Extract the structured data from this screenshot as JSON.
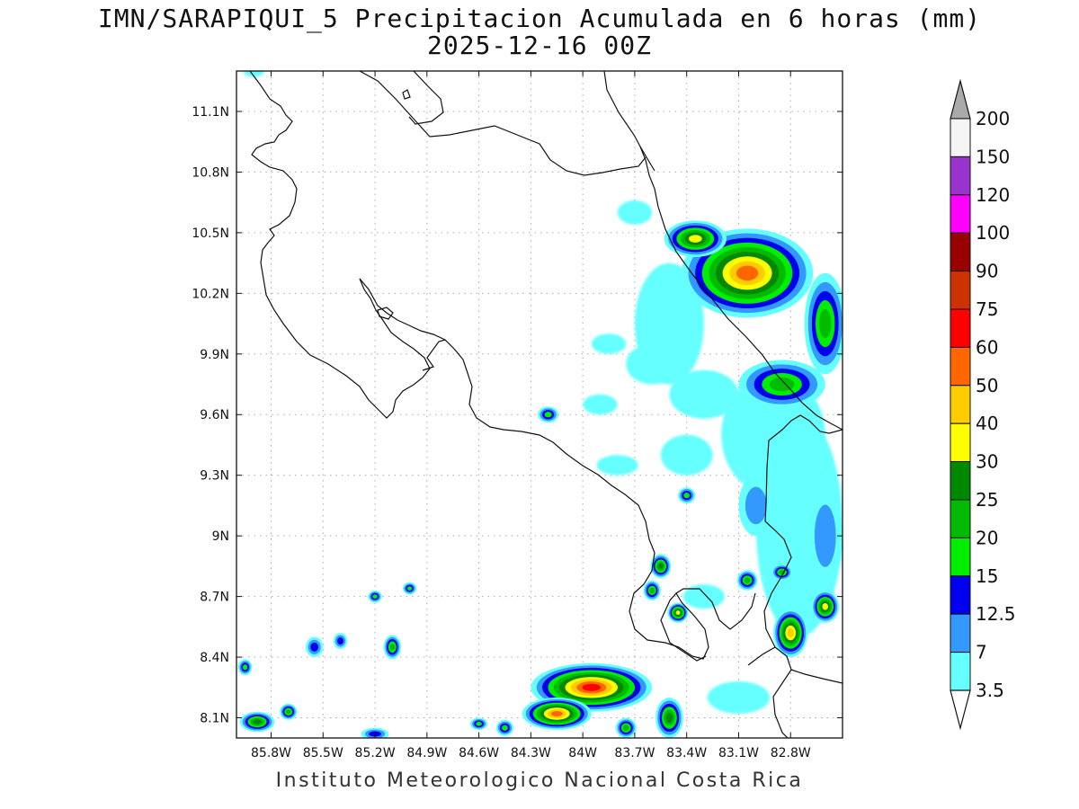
{
  "title": {
    "line1": "IMN/SARAPIQUI_5 Precipitacion Acumulada en 6 horas (mm)",
    "line2": "2025-12-16 00Z"
  },
  "footer": "Instituto Meteorologico Nacional Costa Rica",
  "map": {
    "lon_range": [
      -86.0,
      -82.5
    ],
    "lat_range": [
      8.0,
      11.3
    ],
    "lon_ticks": [
      {
        "value": -85.8,
        "label": "85.8W"
      },
      {
        "value": -85.5,
        "label": "85.5W"
      },
      {
        "value": -85.2,
        "label": "85.2W"
      },
      {
        "value": -84.9,
        "label": "84.9W"
      },
      {
        "value": -84.6,
        "label": "84.6W"
      },
      {
        "value": -84.3,
        "label": "84.3W"
      },
      {
        "value": -84.0,
        "label": "84W"
      },
      {
        "value": -83.7,
        "label": "83.7W"
      },
      {
        "value": -83.4,
        "label": "83.4W"
      },
      {
        "value": -83.1,
        "label": "83.1W"
      },
      {
        "value": -82.8,
        "label": "82.8W"
      }
    ],
    "lat_ticks": [
      {
        "value": 8.1,
        "label": "8.1N"
      },
      {
        "value": 8.4,
        "label": "8.4N"
      },
      {
        "value": 8.7,
        "label": "8.7N"
      },
      {
        "value": 9.0,
        "label": "9N"
      },
      {
        "value": 9.3,
        "label": "9.3N"
      },
      {
        "value": 9.6,
        "label": "9.6N"
      },
      {
        "value": 9.9,
        "label": "9.9N"
      },
      {
        "value": 10.2,
        "label": "10.2N"
      },
      {
        "value": 10.5,
        "label": "10.5N"
      },
      {
        "value": 10.8,
        "label": "10.8N"
      },
      {
        "value": 11.1,
        "label": "11.1N"
      }
    ],
    "grid": true
  },
  "colorbar": {
    "levels": [
      "3.5",
      "7",
      "12.5",
      "15",
      "20",
      "25",
      "30",
      "40",
      "50",
      "60",
      "75",
      "90",
      "100",
      "120",
      "150",
      "200"
    ],
    "colors": [
      "#ffffff",
      "#66ffff",
      "#3399ff",
      "#0000ee",
      "#00ee00",
      "#00bb00",
      "#008800",
      "#ffff00",
      "#ffcc00",
      "#ff6600",
      "#ff0000",
      "#cc3300",
      "#990000",
      "#ff00ff",
      "#9933cc",
      "#f5f5f5",
      "#aaaaaa"
    ],
    "min_arrow_color": "#ffffff",
    "max_arrow_color": "#aaaaaa"
  },
  "rain_cells": [
    {
      "lon": -83.05,
      "lat": 10.3,
      "rlon": 0.38,
      "rlat": 0.22,
      "level": 9
    },
    {
      "lon": -83.35,
      "lat": 10.47,
      "rlon": 0.18,
      "rlat": 0.09,
      "level": 7
    },
    {
      "lon": -82.85,
      "lat": 9.75,
      "rlon": 0.25,
      "rlat": 0.12,
      "level": 5
    },
    {
      "lon": -82.6,
      "lat": 10.05,
      "rlon": 0.12,
      "rlat": 0.25,
      "level": 5
    },
    {
      "lon": -83.95,
      "lat": 8.25,
      "rlon": 0.35,
      "rlat": 0.12,
      "level": 10
    },
    {
      "lon": -84.15,
      "lat": 8.12,
      "rlon": 0.2,
      "rlat": 0.08,
      "level": 9
    },
    {
      "lon": -82.8,
      "lat": 8.52,
      "rlon": 0.1,
      "rlat": 0.12,
      "level": 8
    },
    {
      "lon": -82.6,
      "lat": 8.65,
      "rlon": 0.08,
      "rlat": 0.08,
      "level": 7
    },
    {
      "lon": -83.45,
      "lat": 8.62,
      "rlon": 0.06,
      "rlat": 0.05,
      "level": 7
    },
    {
      "lon": -84.2,
      "lat": 9.6,
      "rlon": 0.06,
      "rlat": 0.04,
      "level": 4
    },
    {
      "lon": -83.4,
      "lat": 9.2,
      "rlon": 0.05,
      "rlat": 0.04,
      "level": 4
    },
    {
      "lon": -83.55,
      "lat": 8.85,
      "rlon": 0.06,
      "rlat": 0.06,
      "level": 6
    },
    {
      "lon": -83.6,
      "lat": 8.73,
      "rlon": 0.05,
      "rlat": 0.05,
      "level": 5
    },
    {
      "lon": -83.05,
      "lat": 8.78,
      "rlon": 0.06,
      "rlat": 0.05,
      "level": 5
    },
    {
      "lon": -82.85,
      "lat": 8.82,
      "rlon": 0.06,
      "rlat": 0.04,
      "level": 5
    },
    {
      "lon": -85.1,
      "lat": 8.45,
      "rlon": 0.05,
      "rlat": 0.06,
      "level": 5
    },
    {
      "lon": -85.4,
      "lat": 8.48,
      "rlon": 0.04,
      "rlat": 0.04,
      "level": 3
    },
    {
      "lon": -85.55,
      "lat": 8.45,
      "rlon": 0.05,
      "rlat": 0.05,
      "level": 3
    },
    {
      "lon": -85.2,
      "lat": 8.7,
      "rlon": 0.04,
      "rlat": 0.03,
      "level": 4
    },
    {
      "lon": -85.0,
      "lat": 8.74,
      "rlon": 0.04,
      "rlat": 0.03,
      "level": 4
    },
    {
      "lon": -85.88,
      "lat": 8.08,
      "rlon": 0.1,
      "rlat": 0.05,
      "level": 6
    },
    {
      "lon": -85.7,
      "lat": 8.13,
      "rlon": 0.05,
      "rlat": 0.04,
      "level": 5
    },
    {
      "lon": -85.95,
      "lat": 8.35,
      "rlon": 0.04,
      "rlat": 0.04,
      "level": 4
    },
    {
      "lon": -84.45,
      "lat": 8.05,
      "rlon": 0.05,
      "rlat": 0.04,
      "level": 4
    },
    {
      "lon": -84.6,
      "lat": 8.07,
      "rlon": 0.05,
      "rlat": 0.03,
      "level": 4
    },
    {
      "lon": -85.2,
      "lat": 8.02,
      "rlon": 0.08,
      "rlat": 0.03,
      "level": 3
    },
    {
      "lon": -83.5,
      "lat": 8.1,
      "rlon": 0.08,
      "rlat": 0.1,
      "level": 6
    },
    {
      "lon": -83.75,
      "lat": 8.05,
      "rlon": 0.06,
      "rlat": 0.05,
      "level": 5
    },
    {
      "lon": -83.0,
      "lat": 9.15,
      "rlon": 0.1,
      "rlat": 0.15,
      "level": 2
    },
    {
      "lon": -82.6,
      "lat": 9.0,
      "rlon": 0.1,
      "rlat": 0.25,
      "level": 2
    }
  ],
  "light_areas": [
    {
      "lon": -83.5,
      "lat": 10.05,
      "rlon": 0.2,
      "rlat": 0.3
    },
    {
      "lon": -82.9,
      "lat": 9.5,
      "rlon": 0.3,
      "rlat": 0.3
    },
    {
      "lon": -83.6,
      "lat": 9.85,
      "rlon": 0.15,
      "rlat": 0.1
    },
    {
      "lon": -83.3,
      "lat": 9.7,
      "rlon": 0.2,
      "rlat": 0.12
    },
    {
      "lon": -82.75,
      "lat": 9.05,
      "rlon": 0.25,
      "rlat": 0.55
    },
    {
      "lon": -83.4,
      "lat": 9.4,
      "rlon": 0.15,
      "rlat": 0.1
    },
    {
      "lon": -83.1,
      "lat": 8.2,
      "rlon": 0.18,
      "rlat": 0.08
    },
    {
      "lon": -83.85,
      "lat": 9.95,
      "rlon": 0.1,
      "rlat": 0.05
    },
    {
      "lon": -83.9,
      "lat": 9.65,
      "rlon": 0.1,
      "rlat": 0.05
    },
    {
      "lon": -83.8,
      "lat": 9.35,
      "rlon": 0.12,
      "rlat": 0.05
    },
    {
      "lon": -83.3,
      "lat": 8.7,
      "rlon": 0.12,
      "rlat": 0.06
    },
    {
      "lon": -83.7,
      "lat": 10.6,
      "rlon": 0.1,
      "rlat": 0.06
    },
    {
      "lon": -85.9,
      "lat": 11.3,
      "rlon": 0.06,
      "rlat": 0.03
    }
  ]
}
